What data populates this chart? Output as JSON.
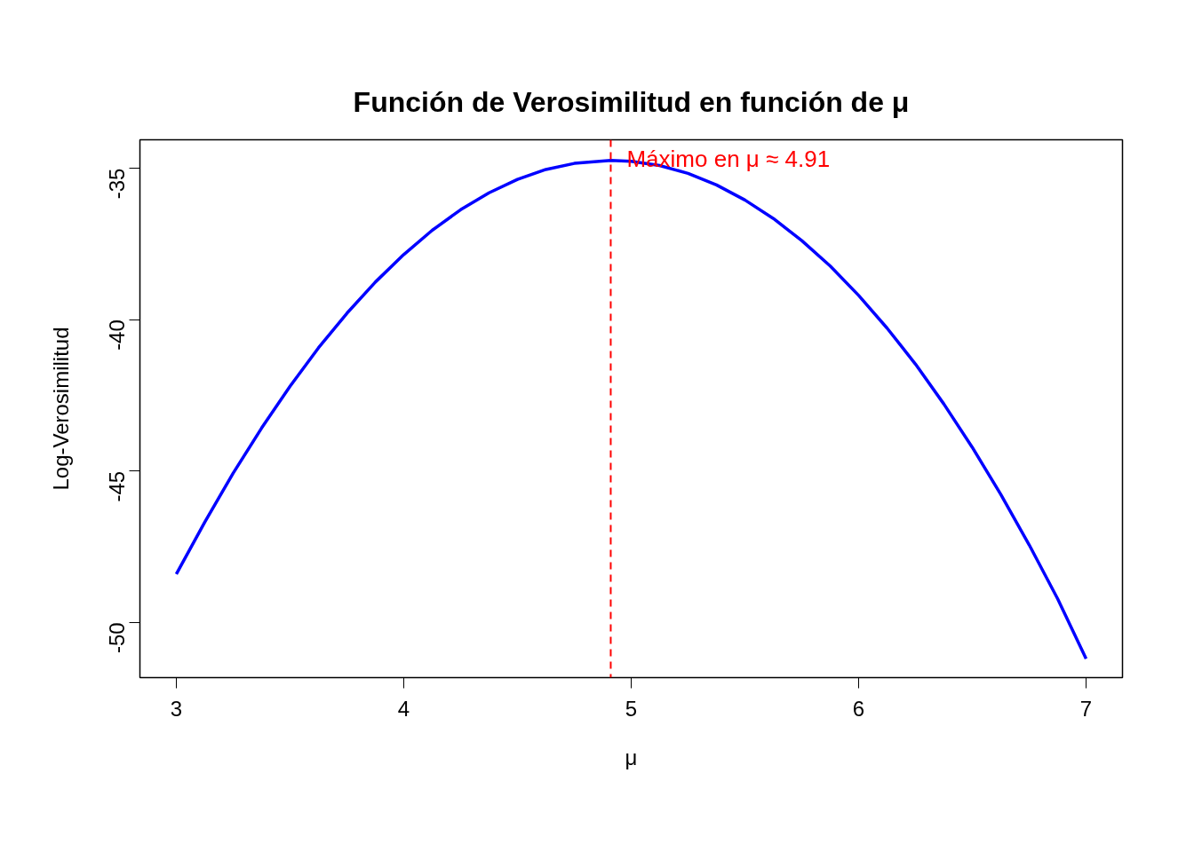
{
  "chart_data": {
    "type": "line",
    "title": "Función de Verosimilitud en función de μ",
    "xlabel": "μ",
    "ylabel": "Log-Verosimilitud",
    "x": [
      3,
      3.125,
      3.25,
      3.375,
      3.5,
      3.625,
      3.75,
      3.875,
      4,
      4.125,
      4.25,
      4.375,
      4.5,
      4.625,
      4.75,
      4.91,
      5,
      5.125,
      5.25,
      5.375,
      5.5,
      5.625,
      5.75,
      5.875,
      6,
      6.125,
      6.25,
      6.375,
      6.5,
      6.625,
      6.75,
      6.875,
      7
    ],
    "series": [
      {
        "color": "#0000ff",
        "values": [
          -48.4,
          -46.69,
          -45.07,
          -43.58,
          -42.2,
          -40.93,
          -39.79,
          -38.76,
          -37.85,
          -37.05,
          -36.37,
          -35.81,
          -35.37,
          -35.04,
          -34.84,
          -34.74,
          -34.77,
          -34.91,
          -35.17,
          -35.55,
          -36.05,
          -36.66,
          -37.39,
          -38.23,
          -39.2,
          -40.28,
          -41.47,
          -42.79,
          -44.22,
          -45.77,
          -47.44,
          -49.22,
          -51.2
        ]
      }
    ],
    "xlim": [
      2.84,
      7.16
    ],
    "ylim": [
      -51.82,
      -34.06
    ],
    "xticks": [
      3,
      4,
      5,
      6,
      7
    ],
    "yticks": [
      -50,
      -45,
      -40,
      -35
    ],
    "ref_lines": [
      {
        "axis": "x",
        "value": 4.91,
        "label": "Máximo en μ ≈ 4.91",
        "color": "#ff0000",
        "line_style": "dashed"
      }
    ],
    "grid": false,
    "marker": "none",
    "line_style": "solid"
  }
}
